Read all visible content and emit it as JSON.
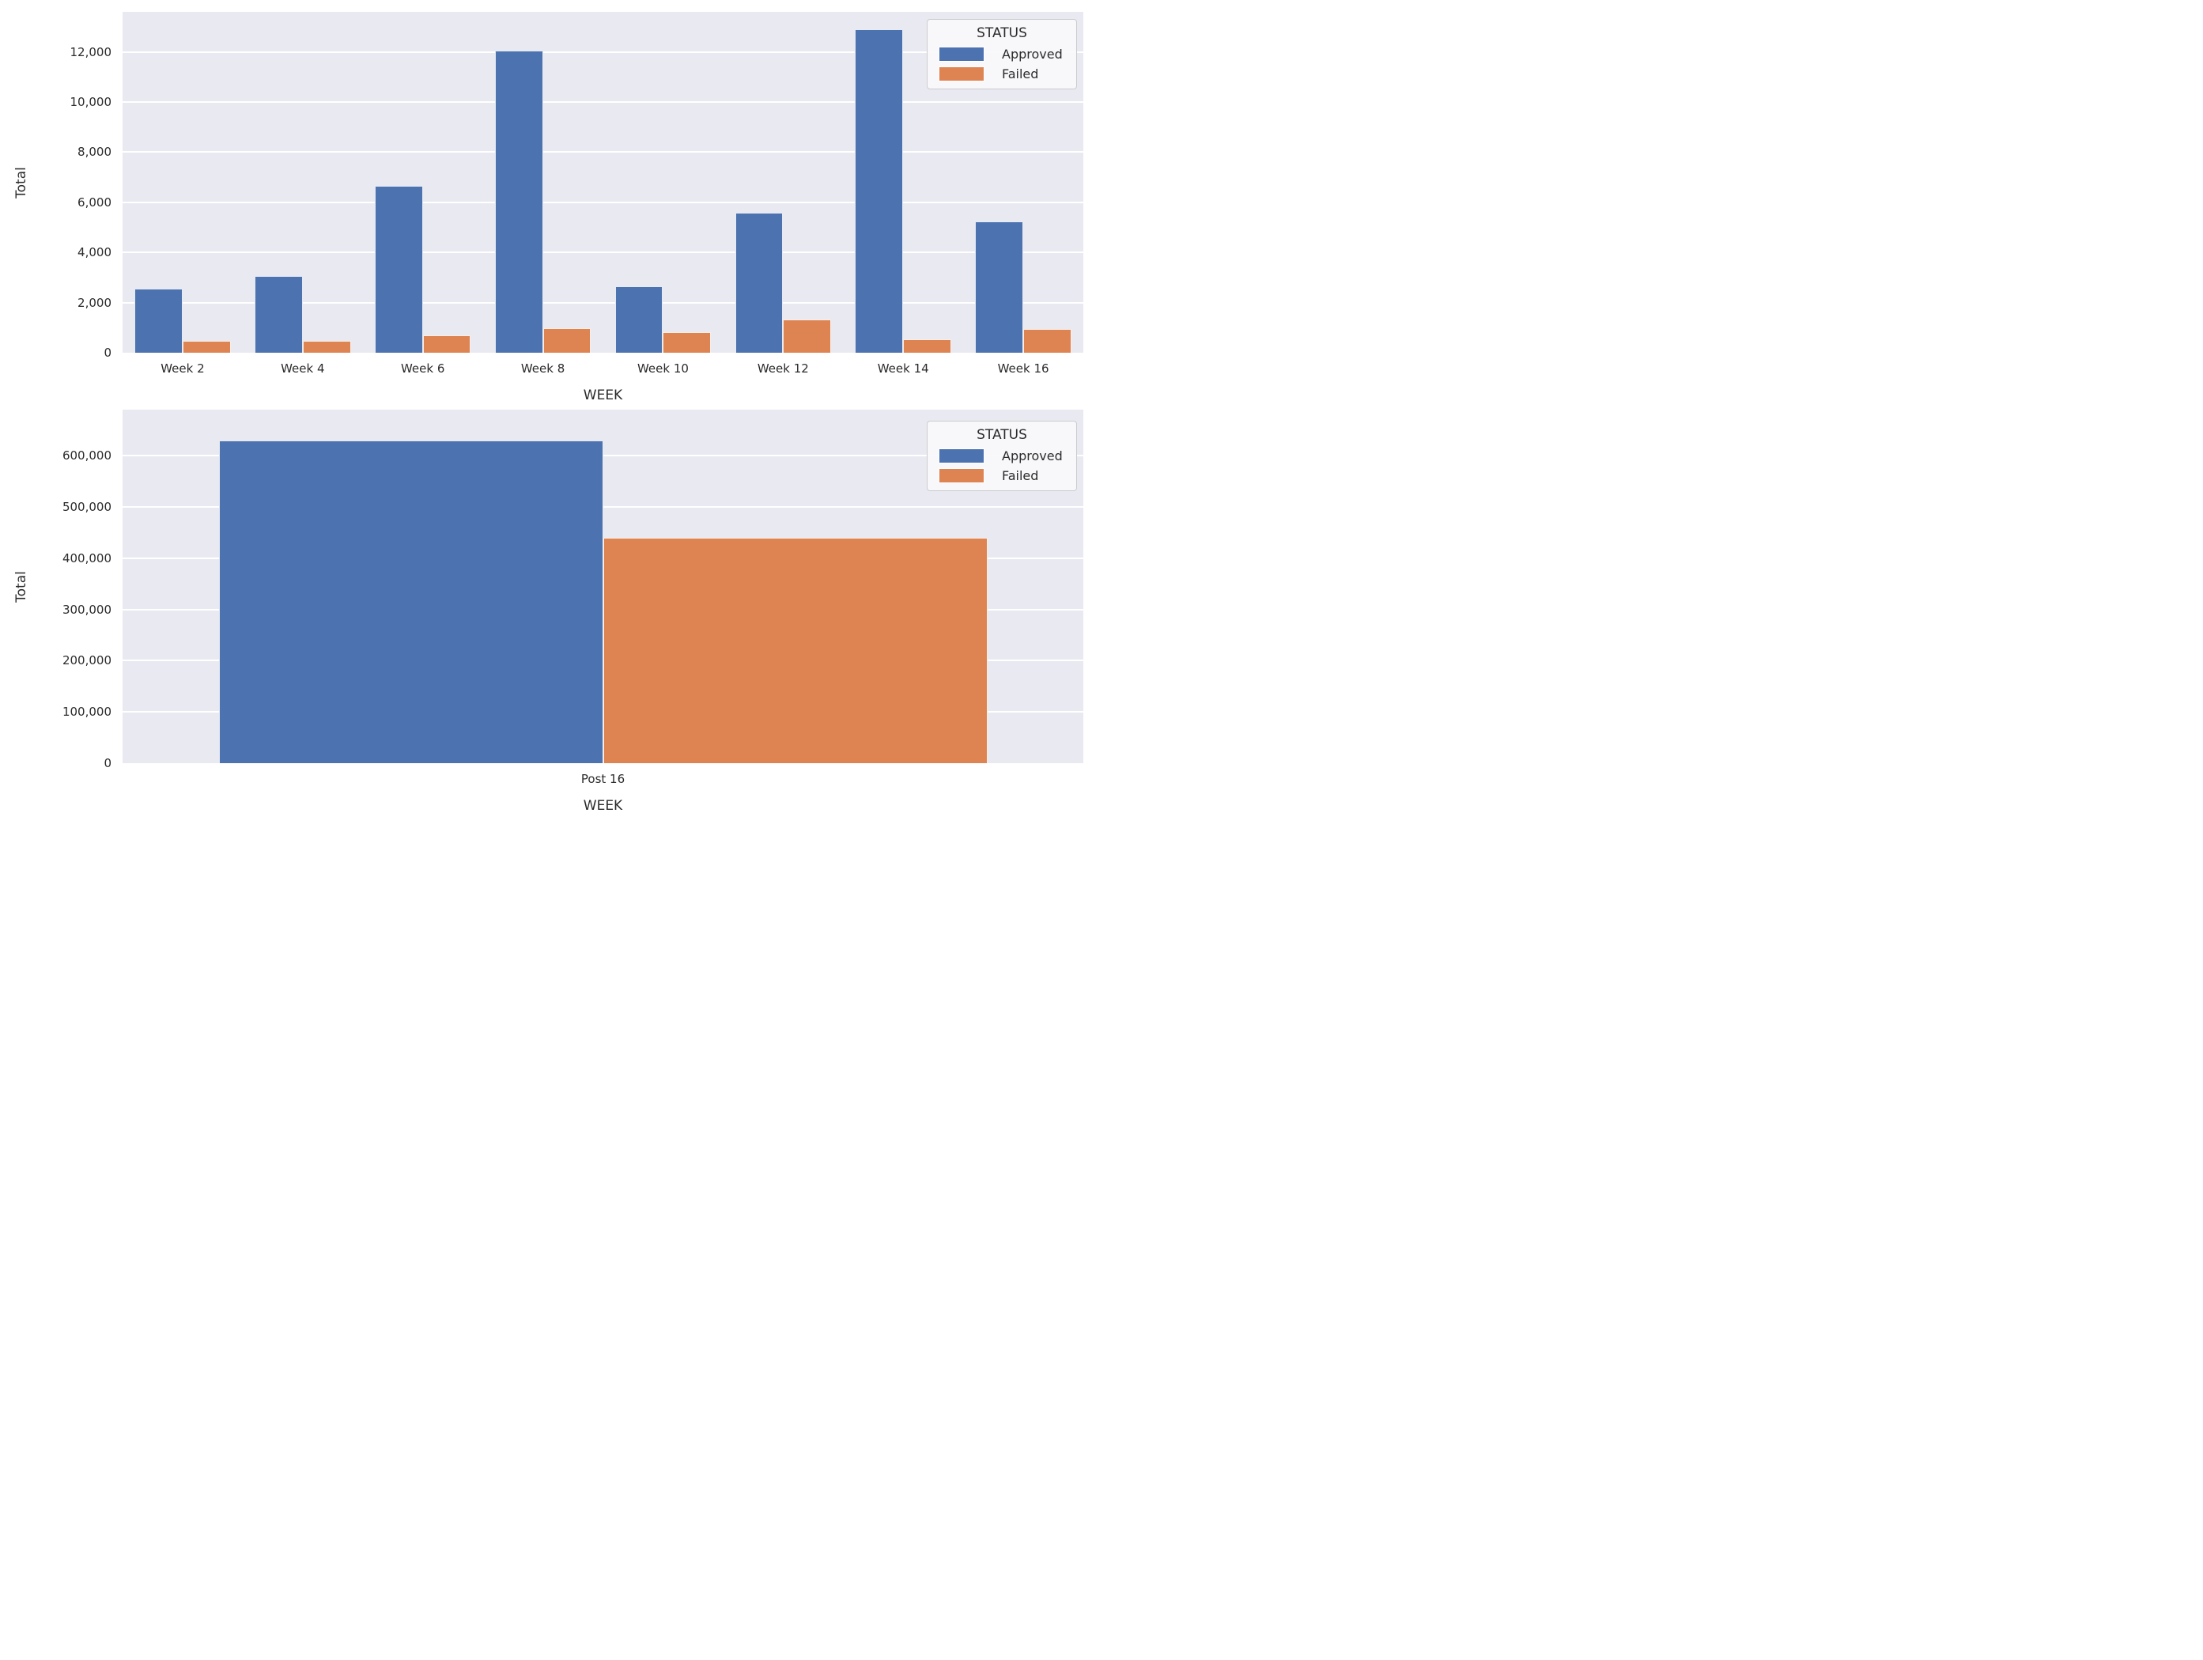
{
  "figure": {
    "background": "#ffffff",
    "plot_background": "#e9e9f2",
    "grid_color": "#ffffff",
    "text_color": "#2b2b2b"
  },
  "colors": {
    "approved": "#4c72b0",
    "failed": "#dd8452"
  },
  "legend": {
    "title": "STATUS",
    "entries": [
      {
        "label": "Approved",
        "color": "#4c72b0",
        "icon": "legend-swatch-approved"
      },
      {
        "label": "Failed",
        "color": "#dd8452",
        "icon": "legend-swatch-failed"
      }
    ]
  },
  "chart_data": [
    {
      "type": "bar",
      "title": "",
      "xlabel": "WEEK",
      "ylabel": "Total",
      "categories": [
        "Week 2",
        "Week 4",
        "Week 6",
        "Week 8",
        "Week 10",
        "Week 12",
        "Week 14",
        "Week 16"
      ],
      "series": [
        {
          "name": "Approved",
          "color": "#4c72b0",
          "values": [
            2560,
            3060,
            6660,
            12040,
            2650,
            5570,
            12900,
            5230
          ]
        },
        {
          "name": "Failed",
          "color": "#dd8452",
          "values": [
            460,
            470,
            700,
            980,
            810,
            1330,
            540,
            950
          ]
        }
      ],
      "ylim": [
        0,
        13600
      ],
      "yticks": [
        0,
        2000,
        4000,
        6000,
        8000,
        10000,
        12000
      ],
      "grid": true,
      "legend_position": "upper right",
      "legend_title": "STATUS"
    },
    {
      "type": "bar",
      "title": "",
      "xlabel": "WEEK",
      "ylabel": "Total",
      "categories": [
        "Post 16"
      ],
      "series": [
        {
          "name": "Approved",
          "color": "#4c72b0",
          "values": [
            630000
          ]
        },
        {
          "name": "Failed",
          "color": "#dd8452",
          "values": [
            440000
          ]
        }
      ],
      "ylim": [
        0,
        690000
      ],
      "yticks": [
        0,
        100000,
        200000,
        300000,
        400000,
        500000,
        600000
      ],
      "grid": true,
      "legend_position": "upper right",
      "legend_title": "STATUS"
    }
  ]
}
